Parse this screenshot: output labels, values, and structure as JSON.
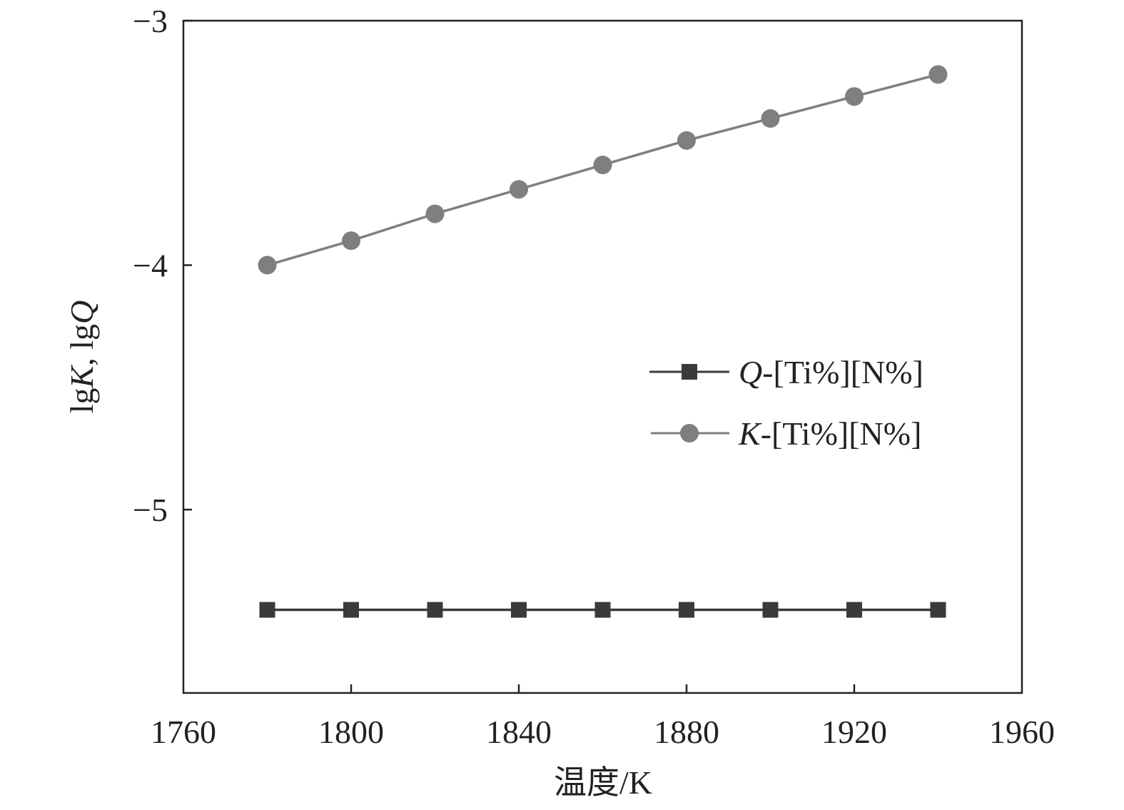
{
  "chart_data": {
    "type": "line",
    "xlabel": "温度/K",
    "ylabel": {
      "parts": [
        "lg",
        "K",
        ", lg",
        "Q"
      ]
    },
    "xlim": [
      1760,
      1960
    ],
    "ylim": [
      -5.75,
      -3
    ],
    "xticks": [
      1760,
      1800,
      1840,
      1880,
      1920,
      1960
    ],
    "yticks": [
      -3,
      -4,
      -5
    ],
    "xtick_labels": [
      "1760",
      "1800",
      "1840",
      "1880",
      "1920",
      "1960"
    ],
    "ytick_labels": [
      "−3",
      "−4",
      "−5"
    ],
    "grid": false,
    "legend_position": "center-right",
    "x": [
      1780,
      1800,
      1820,
      1840,
      1860,
      1880,
      1900,
      1920,
      1940
    ],
    "series": [
      {
        "name": "Q-[Ti%][N%]",
        "name_italic": "Q",
        "name_rest": "-[Ti%][N%]",
        "marker": "square",
        "color": "#3a3a3a",
        "values": [
          -5.41,
          -5.41,
          -5.41,
          -5.41,
          -5.41,
          -5.41,
          -5.41,
          -5.41,
          -5.41
        ]
      },
      {
        "name": "K-[Ti%][N%]",
        "name_italic": "K",
        "name_rest": "-[Ti%][N%]",
        "marker": "circle",
        "color": "#7f7f7f",
        "values": [
          -4.0,
          -3.9,
          -3.79,
          -3.69,
          -3.59,
          -3.49,
          -3.4,
          -3.31,
          -3.22
        ]
      }
    ]
  }
}
